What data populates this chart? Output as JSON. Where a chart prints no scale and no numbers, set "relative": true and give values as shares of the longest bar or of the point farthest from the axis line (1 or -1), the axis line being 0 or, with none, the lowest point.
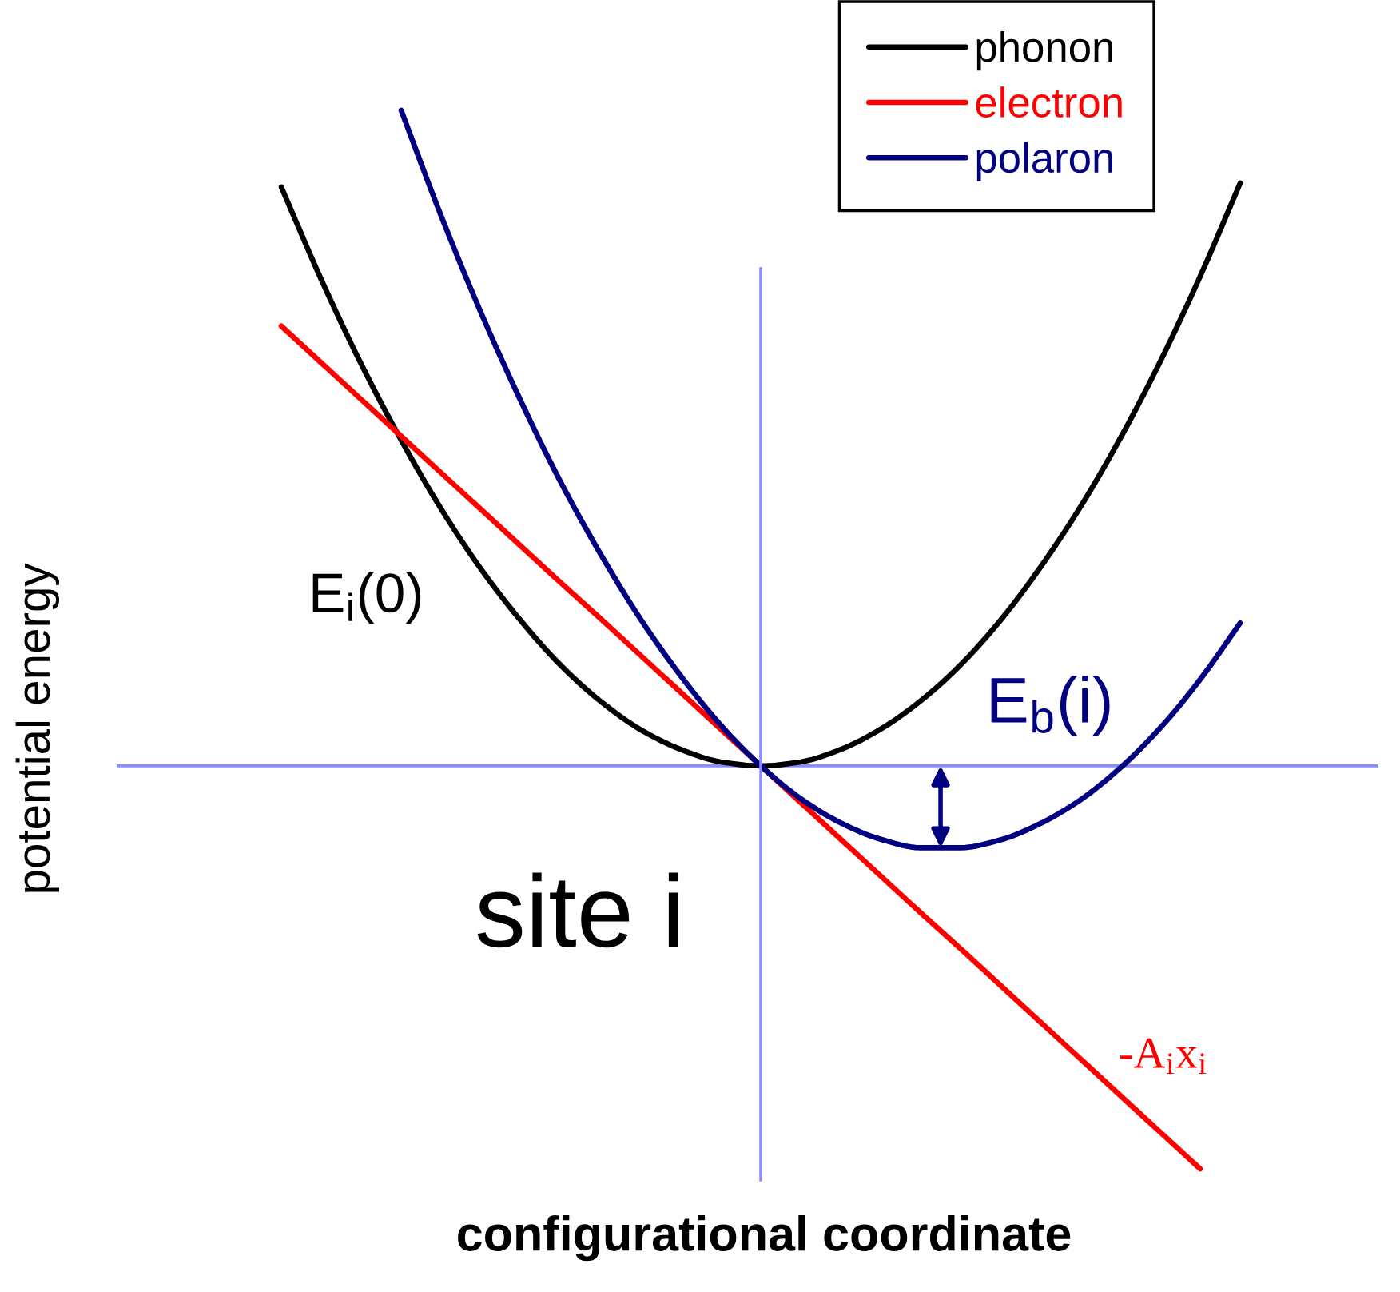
{
  "chart_data": {
    "type": "line",
    "relative": true,
    "xlabel": "configurational coordinate",
    "ylabel": "potential energy",
    "categories": [
      null,
      null,
      null,
      null,
      null,
      null,
      null,
      null,
      null,
      null,
      null,
      null,
      null,
      null,
      null,
      null,
      null,
      null,
      null,
      null,
      null,
      null,
      null,
      null,
      null
    ],
    "series": [
      {
        "name": "phonon",
        "color": "#000000",
        "values": [
          0.883,
          0.742,
          0.613,
          0.497,
          0.392,
          0.3,
          0.221,
          0.153,
          0.098,
          0.055,
          0.025,
          0.006,
          0,
          0.006,
          0.025,
          0.056,
          0.099,
          0.154,
          0.222,
          0.303,
          0.395,
          0.5,
          0.617,
          0.747,
          0.889
        ]
      },
      {
        "name": "electron",
        "color": "#ff0000",
        "values": [
          0.671,
          0.615,
          0.559,
          0.503,
          0.447,
          0.391,
          0.335,
          0.279,
          0.224,
          0.168,
          0.112,
          0.056,
          0,
          -0.056,
          -0.112,
          -0.168,
          -0.224,
          -0.279,
          -0.335,
          -0.391,
          -0.447,
          -0.503,
          -0.559,
          -0.615,
          null
        ]
      },
      {
        "name": "polaron",
        "color": "#000080",
        "values": [
          null,
          null,
          null,
          1.0,
          0.839,
          0.691,
          0.556,
          0.432,
          0.322,
          0.223,
          0.137,
          0.062,
          0,
          -0.05,
          -0.087,
          -0.112,
          -0.125,
          -0.125,
          -0.113,
          -0.088,
          -0.052,
          -0.003,
          0.058,
          0.132,
          0.218
        ]
      }
    ],
    "ref_lines": [
      {
        "axis": "y",
        "value": 0,
        "color": "#8c8cff"
      }
    ],
    "annotations": [
      "E$_{i}$(0)",
      "E$_{b}$(i)",
      "site i",
      "-A$_{i}$x$_{i}$"
    ],
    "legend": "top right",
    "marker": "none",
    "line_style": "solid"
  }
}
